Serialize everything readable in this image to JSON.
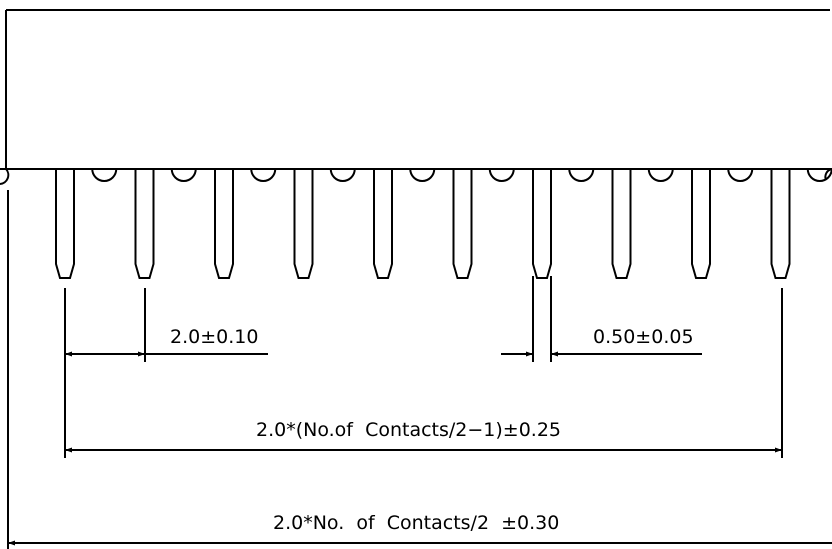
{
  "drawing": {
    "pin_count": 10,
    "notch_count": 10,
    "line_color": "#000000",
    "background_color": "#ffffff"
  },
  "dimensions": {
    "pitch": "2.0±0.10",
    "pin_width": "0.50±0.05",
    "pin_span": "2.0*(No.of  Contacts/2−1)±0.25",
    "overall_length": "2.0*No.  of  Contacts/2  ±0.30"
  }
}
